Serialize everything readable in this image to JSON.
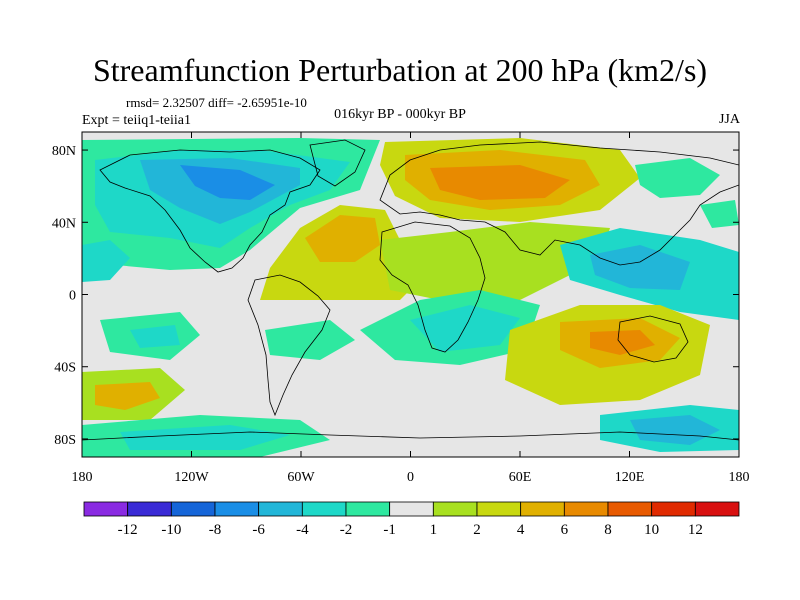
{
  "title": "Streamfunction Perturbation at 200 hPa (km2/s)",
  "stats_line": "rmsd= 2.32507 diff= -2.65951e-10",
  "experiment": "Expt = teiiq1-teiia1",
  "period": "016kyr BP - 000kyr BP",
  "season": "JJA",
  "map": {
    "projection": "cylindrical-equidistant",
    "lon_range": [
      -180,
      180
    ],
    "lat_range": [
      -90,
      90
    ],
    "lon_ticks": [
      {
        "value": -180,
        "label": "180"
      },
      {
        "value": -120,
        "label": "120W"
      },
      {
        "value": -60,
        "label": "60W"
      },
      {
        "value": 0,
        "label": "0"
      },
      {
        "value": 60,
        "label": "60E"
      },
      {
        "value": 120,
        "label": "120E"
      },
      {
        "value": 180,
        "label": "180"
      }
    ],
    "lat_ticks": [
      {
        "value": 80,
        "label": "80N"
      },
      {
        "value": 40,
        "label": "40N"
      },
      {
        "value": 0,
        "label": "0"
      },
      {
        "value": -40,
        "label": "40S"
      },
      {
        "value": -80,
        "label": "80S"
      }
    ],
    "background_color": "#e6e6e6"
  },
  "colorbar": {
    "labels": [
      "-12",
      "-10",
      "-8",
      "-6",
      "-4",
      "-2",
      "-1",
      "1",
      "2",
      "4",
      "6",
      "8",
      "10",
      "12"
    ],
    "colors": [
      "#8a2be2",
      "#3a2bd6",
      "#1565d8",
      "#1a8ee6",
      "#22b6d8",
      "#1ed8c8",
      "#2ee8a0",
      "#e6e6e6",
      "#a8e020",
      "#c8d810",
      "#e0b000",
      "#e88a00",
      "#e85a00",
      "#e02a00",
      "#d81010"
    ]
  }
}
